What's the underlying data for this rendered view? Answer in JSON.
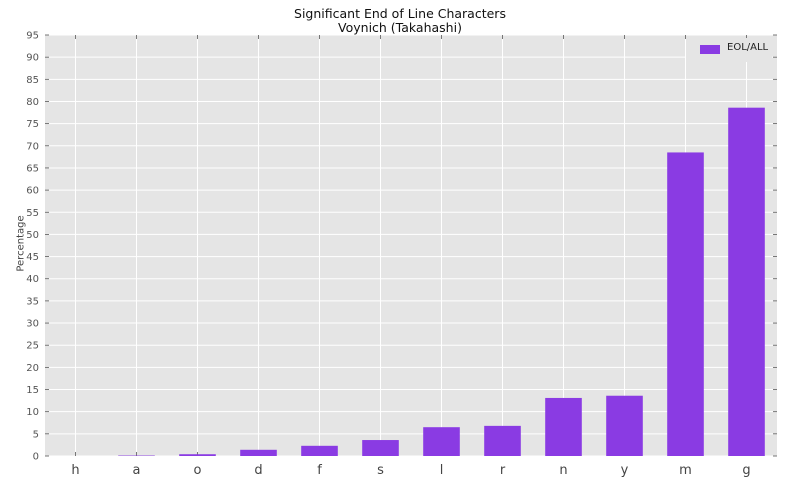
{
  "chart_data": {
    "type": "bar",
    "title": "Significant End of Line Characters",
    "subtitle": "Voynich (Takahashi)",
    "xlabel": "",
    "ylabel": "Percentage",
    "categories": [
      "h",
      "a",
      "o",
      "d",
      "f",
      "s",
      "l",
      "r",
      "n",
      "y",
      "m",
      "g"
    ],
    "series": [
      {
        "name": "EOL/ALL",
        "values": [
          0,
          0.1,
          0.4,
          1.4,
          2.3,
          3.6,
          6.5,
          6.8,
          13.1,
          13.6,
          68.5,
          78.6
        ]
      }
    ],
    "ylim": [
      0,
      95
    ],
    "yticks": [
      0,
      5,
      10,
      15,
      20,
      25,
      30,
      35,
      40,
      45,
      50,
      55,
      60,
      65,
      70,
      75,
      80,
      85,
      90,
      95
    ],
    "grid": true,
    "legend": "top-right",
    "colors": {
      "bar": "#8a3be3",
      "plot_background": "#e5e5e5",
      "grid": "#ffffff"
    }
  }
}
